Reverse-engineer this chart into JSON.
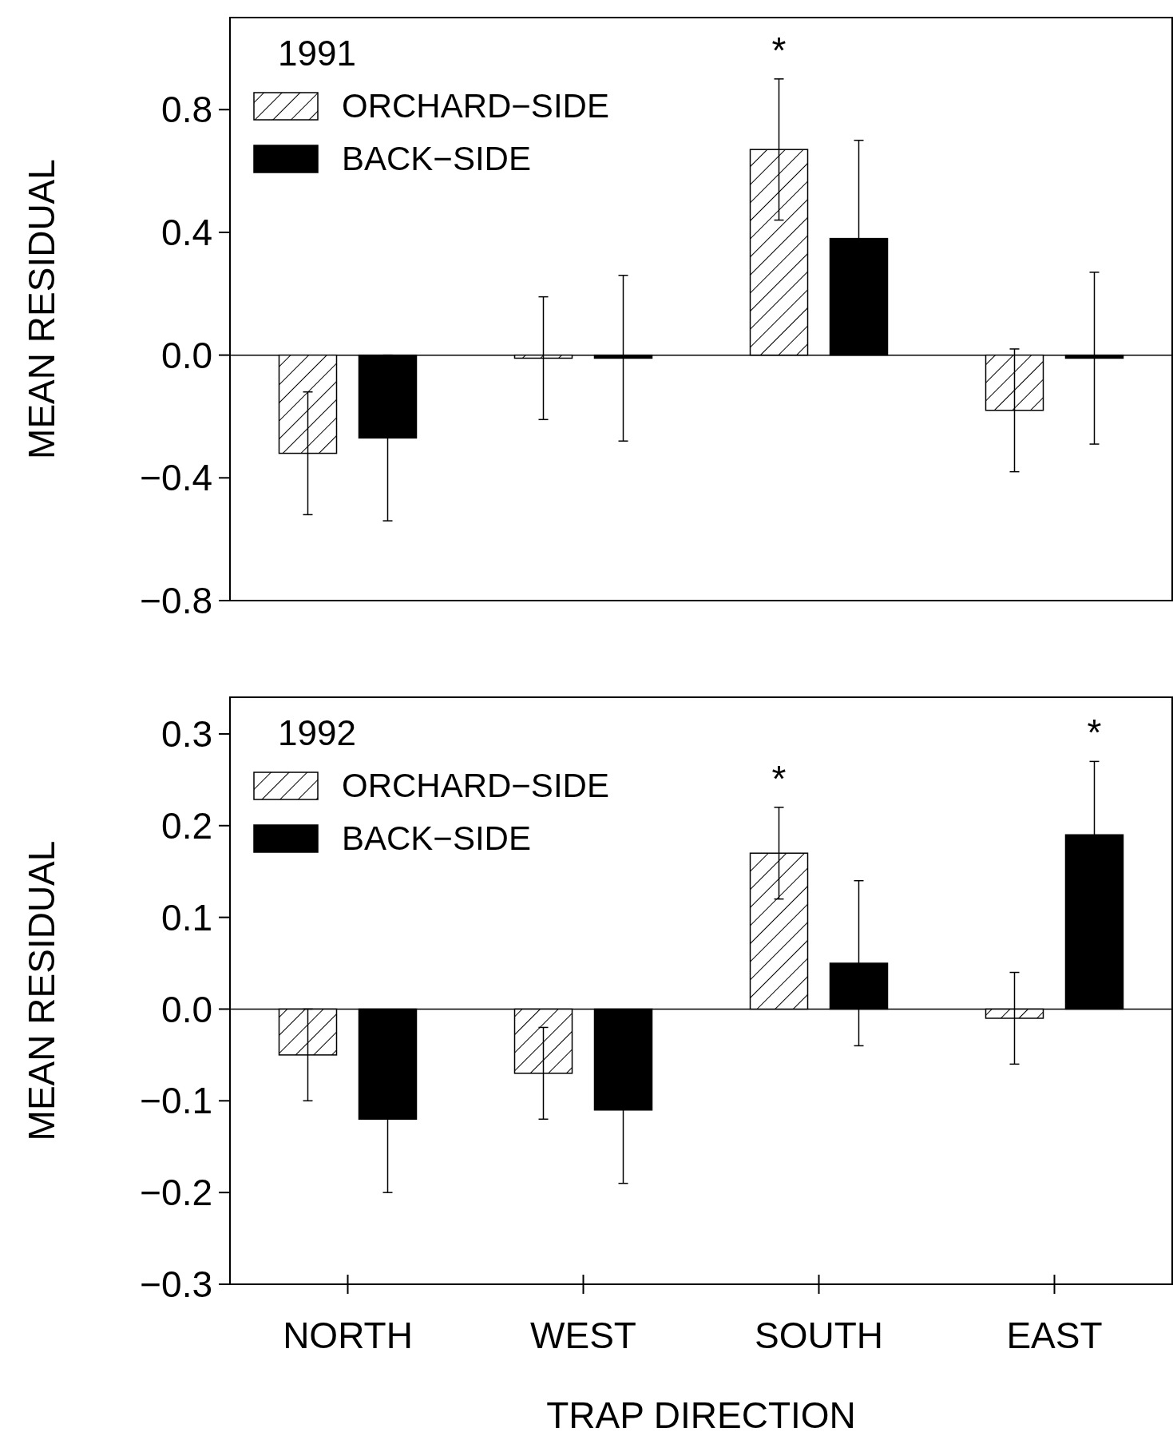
{
  "chart_data": [
    {
      "type": "bar",
      "title": "1991",
      "ylabel": "MEAN RESIDUAL",
      "categories": [
        null,
        null,
        null,
        null
      ],
      "ylim": [
        -0.8,
        1.1
      ],
      "yticks": [
        {
          "value": -0.8,
          "label": "−0.8"
        },
        {
          "value": -0.4,
          "label": "−0.4"
        },
        {
          "value": 0,
          "label": "0.0"
        },
        {
          "value": 0.4,
          "label": "0.4"
        },
        {
          "value": 0.8,
          "label": "0.8"
        }
      ],
      "legend": "top left",
      "tick_labels": "y",
      "series": [
        {
          "name": "ORCHARD−SIDE",
          "color": "#000000",
          "values": [
            -0.32,
            -0.01,
            0.67,
            -0.18
          ],
          "errors": [
            0.2,
            0.2,
            0.23,
            0.2
          ],
          "value_labels": [
            null,
            null,
            "*",
            null
          ]
        },
        {
          "name": "BACK−SIDE",
          "color": "#000000",
          "values": [
            -0.27,
            -0.01,
            0.38,
            -0.01
          ],
          "errors": [
            0.27,
            0.27,
            0.32,
            0.28
          ]
        }
      ]
    },
    {
      "type": "bar",
      "title": "1992",
      "ylabel": "MEAN RESIDUAL",
      "xlabel": "TRAP DIRECTION",
      "categories": [
        "NORTH",
        "WEST",
        "SOUTH",
        "EAST"
      ],
      "ylim": [
        -0.3,
        0.34
      ],
      "yticks": [
        {
          "value": -0.3,
          "label": "−0.3"
        },
        {
          "value": -0.2,
          "label": "−0.2"
        },
        {
          "value": -0.1,
          "label": "−0.1"
        },
        {
          "value": 0,
          "label": "0.0"
        },
        {
          "value": 0.1,
          "label": "0.1"
        },
        {
          "value": 0.2,
          "label": "0.2"
        },
        {
          "value": 0.3,
          "label": "0.3"
        }
      ],
      "legend": "top left",
      "series": [
        {
          "name": "ORCHARD−SIDE",
          "color": "#000000",
          "values": [
            -0.05,
            -0.07,
            0.17,
            -0.01
          ],
          "errors": [
            0.05,
            0.05,
            0.05,
            0.05
          ],
          "value_labels": [
            null,
            null,
            "*",
            null
          ]
        },
        {
          "name": "BACK−SIDE",
          "color": "#000000",
          "values": [
            -0.12,
            -0.11,
            0.05,
            0.19
          ],
          "errors": [
            0.08,
            0.08,
            0.09,
            0.08
          ],
          "value_labels": [
            null,
            null,
            null,
            "*"
          ]
        }
      ]
    }
  ]
}
